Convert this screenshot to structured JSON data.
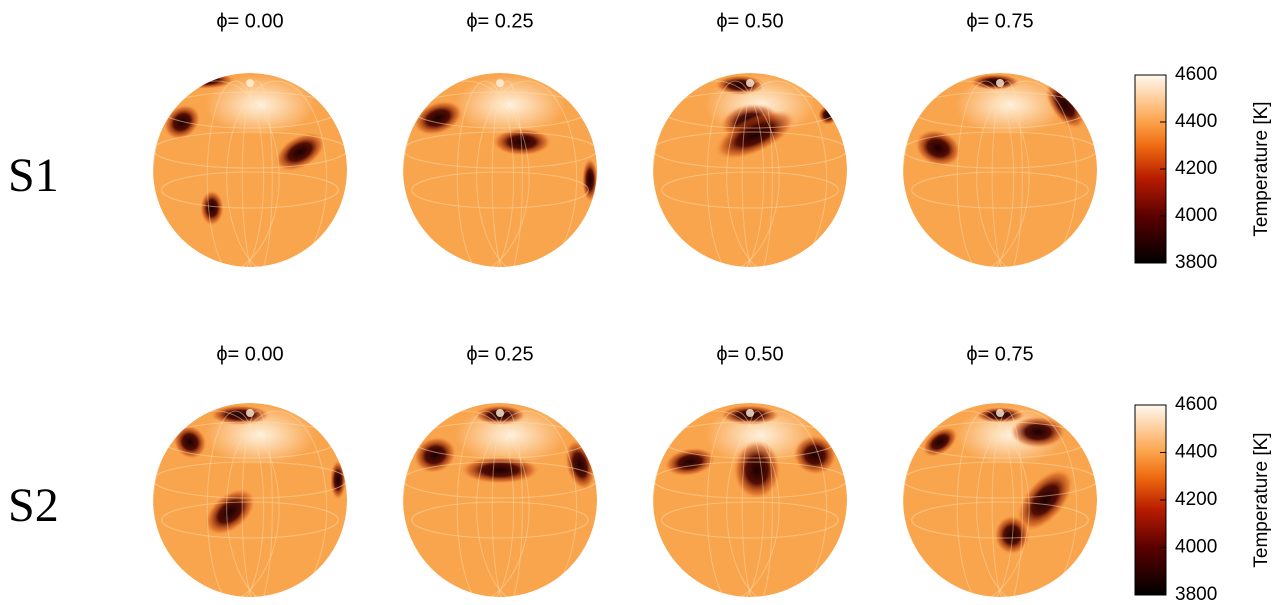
{
  "figure": {
    "rows": [
      {
        "label": "S1",
        "panels": [
          {
            "title": "ϕ= 0.00"
          },
          {
            "title": "ϕ= 0.25"
          },
          {
            "title": "ϕ= 0.50"
          },
          {
            "title": "ϕ= 0.75"
          }
        ],
        "colorbar": {
          "label": "Temperature [K]",
          "lim": [
            3800,
            4600
          ],
          "ticks": [
            3800,
            4000,
            4200,
            4400,
            4600
          ]
        }
      },
      {
        "label": "S2",
        "panels": [
          {
            "title": "ϕ= 0.00"
          },
          {
            "title": "ϕ= 0.25"
          },
          {
            "title": "ϕ= 0.50"
          },
          {
            "title": "ϕ= 0.75"
          }
        ],
        "colorbar": {
          "label": "Temperature [K]",
          "lim": [
            3800,
            4600
          ],
          "ticks": [
            3800,
            4000,
            4200,
            4400,
            4600
          ]
        }
      }
    ]
  }
}
